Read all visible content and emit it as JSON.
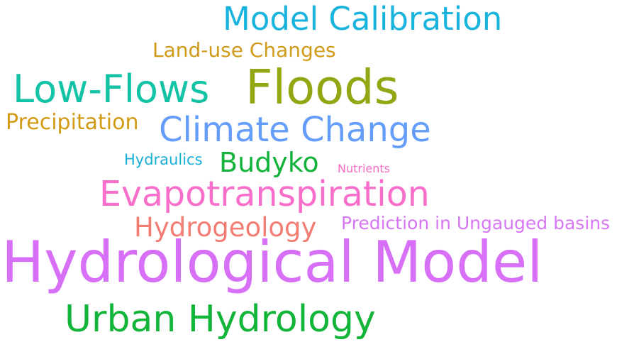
{
  "words": [
    {
      "text": "Model Calibration",
      "color": "#19b4de"
    },
    {
      "text": "Land-use Changes",
      "color": "#d19a1a"
    },
    {
      "text": "Low-Flows",
      "color": "#12c3a6"
    },
    {
      "text": "Floods",
      "color": "#93a714"
    },
    {
      "text": "Precipitation",
      "color": "#d39a14"
    },
    {
      "text": "Climate Change",
      "color": "#649dfa"
    },
    {
      "text": "Hydraulics",
      "color": "#16afd6"
    },
    {
      "text": "Budyko",
      "color": "#12b33a"
    },
    {
      "text": "Nutrients",
      "color": "#f36ec3"
    },
    {
      "text": "Evapotranspiration",
      "color": "#f76fca"
    },
    {
      "text": "Hydrogeology",
      "color": "#f37d73"
    },
    {
      "text": "Prediction in Ungauged basins",
      "color": "#d776f3"
    },
    {
      "text": "Hydrological Model",
      "color": "#d76ff7"
    },
    {
      "text": "Urban Hydrology",
      "color": "#12b43a"
    }
  ]
}
